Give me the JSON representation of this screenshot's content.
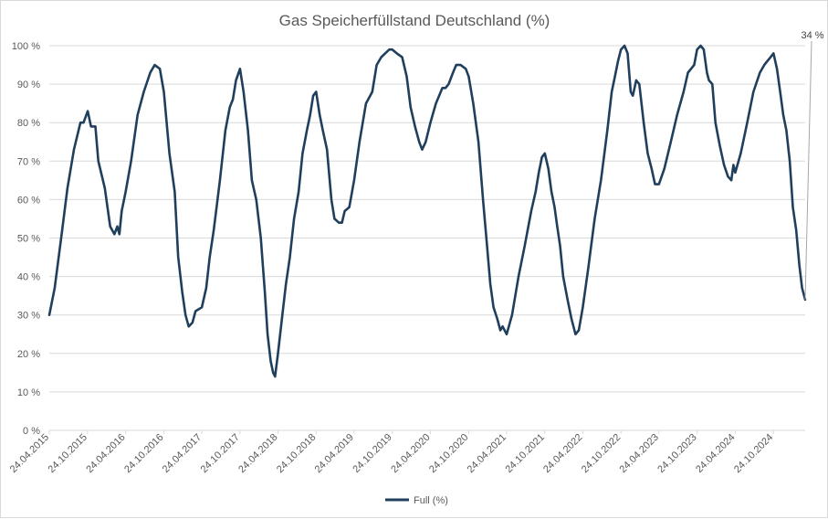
{
  "chart_data": {
    "type": "line",
    "title": "Gas Speicherfüllstand Deutschland (%)",
    "xlabel": "",
    "ylabel": "",
    "ylim": [
      0,
      100
    ],
    "y_ticks": [
      "0 %",
      "10 %",
      "20 %",
      "30 %",
      "40 %",
      "50 %",
      "60 %",
      "70 %",
      "80 %",
      "90 %",
      "100 %"
    ],
    "x_tick_labels": [
      "24.04.2015",
      "24.10.2015",
      "24.04.2016",
      "24.10.2016",
      "24.04.2017",
      "24.10.2017",
      "24.04.2018",
      "24.10.2018",
      "24.04.2019",
      "24.10.2019",
      "24.04.2020",
      "24.10.2020",
      "24.04.2021",
      "24.10.2021",
      "24.04.2022",
      "24.10.2022",
      "24.04.2023",
      "24.10.2023",
      "24.04.2024",
      "24.10.2024"
    ],
    "xlim": [
      "2015-04-24",
      "2025-03-25"
    ],
    "grid": true,
    "legend_position": "bottom",
    "line_color": "#203f5c",
    "annotation": {
      "text": "34 %",
      "x": "2025-03-25",
      "y": 34
    },
    "series": [
      {
        "name": "Full (%)",
        "points": [
          [
            "2015-04-24",
            30
          ],
          [
            "2015-05-20",
            37
          ],
          [
            "2015-06-20",
            50
          ],
          [
            "2015-07-20",
            63
          ],
          [
            "2015-08-20",
            73
          ],
          [
            "2015-09-20",
            80
          ],
          [
            "2015-10-05",
            80
          ],
          [
            "2015-10-25",
            83
          ],
          [
            "2015-11-10",
            79
          ],
          [
            "2015-12-01",
            79
          ],
          [
            "2015-12-15",
            70
          ],
          [
            "2016-01-15",
            63
          ],
          [
            "2016-02-10",
            53
          ],
          [
            "2016-03-01",
            51
          ],
          [
            "2016-03-15",
            53
          ],
          [
            "2016-03-25",
            51
          ],
          [
            "2016-04-05",
            57
          ],
          [
            "2016-04-24",
            62
          ],
          [
            "2016-05-20",
            70
          ],
          [
            "2016-06-20",
            82
          ],
          [
            "2016-07-20",
            88
          ],
          [
            "2016-08-20",
            93
          ],
          [
            "2016-09-10",
            95
          ],
          [
            "2016-10-05",
            94
          ],
          [
            "2016-10-24",
            88
          ],
          [
            "2016-11-20",
            72
          ],
          [
            "2016-12-15",
            62
          ],
          [
            "2017-01-01",
            45
          ],
          [
            "2017-01-20",
            36
          ],
          [
            "2017-02-05",
            30
          ],
          [
            "2017-02-20",
            27
          ],
          [
            "2017-03-10",
            28
          ],
          [
            "2017-03-25",
            31
          ],
          [
            "2017-04-24",
            32
          ],
          [
            "2017-05-15",
            37
          ],
          [
            "2017-06-01",
            45
          ],
          [
            "2017-06-20",
            52
          ],
          [
            "2017-07-20",
            65
          ],
          [
            "2017-08-15",
            78
          ],
          [
            "2017-09-05",
            84
          ],
          [
            "2017-09-20",
            86
          ],
          [
            "2017-10-05",
            91
          ],
          [
            "2017-10-24",
            94
          ],
          [
            "2017-11-10",
            88
          ],
          [
            "2017-12-01",
            78
          ],
          [
            "2017-12-20",
            65
          ],
          [
            "2018-01-10",
            60
          ],
          [
            "2018-02-01",
            50
          ],
          [
            "2018-02-20",
            36
          ],
          [
            "2018-03-05",
            25
          ],
          [
            "2018-03-20",
            18
          ],
          [
            "2018-04-01",
            15
          ],
          [
            "2018-04-10",
            14
          ],
          [
            "2018-04-24",
            20
          ],
          [
            "2018-05-15",
            30
          ],
          [
            "2018-06-01",
            38
          ],
          [
            "2018-06-20",
            45
          ],
          [
            "2018-07-10",
            55
          ],
          [
            "2018-08-01",
            62
          ],
          [
            "2018-08-20",
            72
          ],
          [
            "2018-09-10",
            78
          ],
          [
            "2018-09-25",
            82
          ],
          [
            "2018-10-10",
            87
          ],
          [
            "2018-10-24",
            88
          ],
          [
            "2018-11-10",
            82
          ],
          [
            "2018-11-25",
            78
          ],
          [
            "2018-12-15",
            73
          ],
          [
            "2019-01-05",
            60
          ],
          [
            "2019-01-20",
            55
          ],
          [
            "2019-02-10",
            54
          ],
          [
            "2019-02-25",
            54
          ],
          [
            "2019-03-10",
            57
          ],
          [
            "2019-04-01",
            58
          ],
          [
            "2019-04-24",
            65
          ],
          [
            "2019-05-20",
            75
          ],
          [
            "2019-06-20",
            85
          ],
          [
            "2019-07-20",
            88
          ],
          [
            "2019-08-10",
            95
          ],
          [
            "2019-09-01",
            97
          ],
          [
            "2019-09-20",
            98
          ],
          [
            "2019-10-10",
            99
          ],
          [
            "2019-10-24",
            99
          ],
          [
            "2019-11-15",
            98
          ],
          [
            "2019-12-10",
            97
          ],
          [
            "2020-01-01",
            92
          ],
          [
            "2020-01-20",
            84
          ],
          [
            "2020-02-10",
            79
          ],
          [
            "2020-03-01",
            75
          ],
          [
            "2020-03-15",
            73
          ],
          [
            "2020-04-01",
            75
          ],
          [
            "2020-04-24",
            80
          ],
          [
            "2020-05-20",
            85
          ],
          [
            "2020-06-20",
            89
          ],
          [
            "2020-07-05",
            89
          ],
          [
            "2020-07-20",
            90
          ],
          [
            "2020-08-10",
            93
          ],
          [
            "2020-08-25",
            95
          ],
          [
            "2020-09-15",
            95
          ],
          [
            "2020-10-10",
            94
          ],
          [
            "2020-10-24",
            92
          ],
          [
            "2020-11-15",
            85
          ],
          [
            "2020-12-10",
            75
          ],
          [
            "2021-01-01",
            60
          ],
          [
            "2021-01-20",
            48
          ],
          [
            "2021-02-05",
            38
          ],
          [
            "2021-02-20",
            32
          ],
          [
            "2021-03-10",
            29
          ],
          [
            "2021-03-25",
            26
          ],
          [
            "2021-04-05",
            27
          ],
          [
            "2021-04-24",
            25
          ],
          [
            "2021-05-20",
            30
          ],
          [
            "2021-06-20",
            40
          ],
          [
            "2021-07-20",
            48
          ],
          [
            "2021-08-20",
            57
          ],
          [
            "2021-09-10",
            62
          ],
          [
            "2021-09-25",
            67
          ],
          [
            "2021-10-10",
            71
          ],
          [
            "2021-10-24",
            72
          ],
          [
            "2021-11-10",
            68
          ],
          [
            "2021-11-25",
            62
          ],
          [
            "2021-12-10",
            58
          ],
          [
            "2021-12-20",
            54
          ],
          [
            "2022-01-05",
            48
          ],
          [
            "2022-01-20",
            40
          ],
          [
            "2022-02-10",
            34
          ],
          [
            "2022-03-01",
            29
          ],
          [
            "2022-03-20",
            25
          ],
          [
            "2022-04-05",
            26
          ],
          [
            "2022-04-24",
            32
          ],
          [
            "2022-05-20",
            42
          ],
          [
            "2022-06-20",
            55
          ],
          [
            "2022-07-20",
            65
          ],
          [
            "2022-08-20",
            78
          ],
          [
            "2022-09-10",
            88
          ],
          [
            "2022-09-25",
            92
          ],
          [
            "2022-10-10",
            96
          ],
          [
            "2022-10-24",
            99
          ],
          [
            "2022-11-10",
            100
          ],
          [
            "2022-11-25",
            98
          ],
          [
            "2022-12-10",
            88
          ],
          [
            "2022-12-20",
            87
          ],
          [
            "2023-01-05",
            91
          ],
          [
            "2023-01-20",
            90
          ],
          [
            "2023-02-10",
            80
          ],
          [
            "2023-03-01",
            72
          ],
          [
            "2023-03-20",
            68
          ],
          [
            "2023-04-05",
            64
          ],
          [
            "2023-04-24",
            64
          ],
          [
            "2023-05-20",
            68
          ],
          [
            "2023-06-20",
            75
          ],
          [
            "2023-07-20",
            82
          ],
          [
            "2023-08-20",
            88
          ],
          [
            "2023-09-10",
            93
          ],
          [
            "2023-09-25",
            94
          ],
          [
            "2023-10-10",
            95
          ],
          [
            "2023-10-24",
            99
          ],
          [
            "2023-11-10",
            100
          ],
          [
            "2023-11-25",
            99
          ],
          [
            "2023-12-10",
            93
          ],
          [
            "2023-12-20",
            91
          ],
          [
            "2024-01-05",
            90
          ],
          [
            "2024-01-20",
            80
          ],
          [
            "2024-02-10",
            74
          ],
          [
            "2024-03-01",
            69
          ],
          [
            "2024-03-20",
            66
          ],
          [
            "2024-04-05",
            65
          ],
          [
            "2024-04-15",
            69
          ],
          [
            "2024-04-24",
            67
          ],
          [
            "2024-05-20",
            72
          ],
          [
            "2024-06-20",
            80
          ],
          [
            "2024-07-20",
            88
          ],
          [
            "2024-08-20",
            93
          ],
          [
            "2024-09-10",
            95
          ],
          [
            "2024-09-25",
            96
          ],
          [
            "2024-10-10",
            97
          ],
          [
            "2024-10-24",
            98
          ],
          [
            "2024-11-10",
            94
          ],
          [
            "2024-11-25",
            88
          ],
          [
            "2024-12-10",
            82
          ],
          [
            "2024-12-25",
            78
          ],
          [
            "2025-01-10",
            70
          ],
          [
            "2025-01-25",
            58
          ],
          [
            "2025-02-10",
            52
          ],
          [
            "2025-02-25",
            43
          ],
          [
            "2025-03-10",
            37
          ],
          [
            "2025-03-25",
            34
          ]
        ]
      }
    ]
  }
}
